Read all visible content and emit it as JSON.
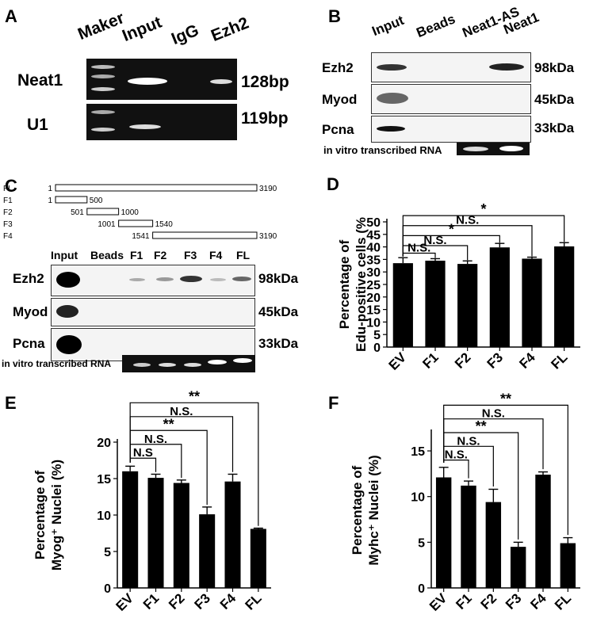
{
  "panels": {
    "A": {
      "letter": "A",
      "lanes": [
        "Maker",
        "Input",
        "IgG",
        "Ezh2"
      ],
      "rows": [
        {
          "name": "Neat1",
          "size": "128bp"
        },
        {
          "name": "U1",
          "size": "119bp"
        }
      ]
    },
    "B": {
      "letter": "B",
      "lanes": [
        "Input",
        "Beads",
        "Neat1-AS",
        "Neat1"
      ],
      "rows": [
        {
          "name": "Ezh2",
          "size": "98kDa"
        },
        {
          "name": "Myod",
          "size": "45kDa"
        },
        {
          "name": "Pcna",
          "size": "33kDa"
        }
      ],
      "rna_label": "in vitro transcribed RNA"
    },
    "C": {
      "letter": "C",
      "fragments": [
        {
          "name": "FL",
          "start": "1",
          "end": "3190",
          "s": 1,
          "e": 3190
        },
        {
          "name": "F1",
          "start": "1",
          "end": "500",
          "s": 1,
          "e": 500
        },
        {
          "name": "F2",
          "start": "501",
          "end": "1000",
          "s": 501,
          "e": 1000
        },
        {
          "name": "F3",
          "start": "1001",
          "end": "1540",
          "s": 1001,
          "e": 1540
        },
        {
          "name": "F4",
          "start": "1541",
          "end": "3190",
          "s": 1541,
          "e": 3190
        }
      ],
      "lanes": [
        "Input",
        "Beads",
        "F1",
        "F2",
        "F3",
        "F4",
        "FL"
      ],
      "rows": [
        {
          "name": "Ezh2",
          "size": "98kDa"
        },
        {
          "name": "Myod",
          "size": "45kDa"
        },
        {
          "name": "Pcna",
          "size": "33kDa"
        }
      ],
      "rna_label": "in vitro transcribed RNA"
    },
    "D": {
      "letter": "D"
    },
    "E": {
      "letter": "E"
    },
    "F": {
      "letter": "F"
    }
  },
  "chart_data": [
    {
      "panel": "D",
      "type": "bar",
      "categories": [
        "EV",
        "F1",
        "F2",
        "F3",
        "F4",
        "FL"
      ],
      "values": [
        33.5,
        34.5,
        33.2,
        39.8,
        35.3,
        40.2
      ],
      "errors": [
        2.2,
        0.8,
        1.2,
        1.6,
        0.6,
        1.5
      ],
      "ylabel": [
        "Percentage of",
        "Edu-positive cells (%"
      ],
      "ylim": [
        0,
        50
      ],
      "yticks": [
        0,
        5,
        10,
        15,
        20,
        25,
        30,
        35,
        40,
        45,
        50
      ],
      "comparisons": [
        {
          "label": "N.S.",
          "to": "F1"
        },
        {
          "label": "N.S.",
          "to": "F2"
        },
        {
          "label": "*",
          "to": "F3"
        },
        {
          "label": "N.S.",
          "to": "F4"
        },
        {
          "label": "*",
          "to": "FL"
        }
      ]
    },
    {
      "panel": "E",
      "type": "bar",
      "categories": [
        "EV",
        "F1",
        "F2",
        "F3",
        "F4",
        "FL"
      ],
      "values": [
        16.0,
        15.1,
        14.4,
        10.1,
        14.6,
        8.1
      ],
      "errors": [
        0.7,
        0.5,
        0.4,
        1.0,
        1.0,
        0.1
      ],
      "ylabel": [
        "Percentage of",
        "Myog⁺ Nuclei (%)"
      ],
      "ylim": [
        0,
        20
      ],
      "yticks": [
        0,
        5,
        10,
        15,
        20
      ],
      "comparisons": [
        {
          "label": "N.S",
          "to": "F1"
        },
        {
          "label": "N.S.",
          "to": "F2"
        },
        {
          "label": "**",
          "to": "F3"
        },
        {
          "label": "N.S.",
          "to": "F4"
        },
        {
          "label": "**",
          "to": "FL"
        }
      ]
    },
    {
      "panel": "F",
      "type": "bar",
      "categories": [
        "EV",
        "F1",
        "F2",
        "F3",
        "F4",
        "FL"
      ],
      "values": [
        12.1,
        11.2,
        9.4,
        4.5,
        12.4,
        4.9
      ],
      "errors": [
        1.1,
        0.5,
        1.4,
        0.5,
        0.3,
        0.6
      ],
      "ylabel": [
        "Percentage of",
        "Myhc⁺ Nuclei (%)"
      ],
      "ylim": [
        0,
        17
      ],
      "yticks": [
        0,
        5,
        10,
        15
      ],
      "comparisons": [
        {
          "label": "N.S.",
          "to": "F1"
        },
        {
          "label": "N.S.",
          "to": "F2"
        },
        {
          "label": "**",
          "to": "F3"
        },
        {
          "label": "N.S.",
          "to": "F4"
        },
        {
          "label": "**",
          "to": "FL"
        }
      ]
    }
  ]
}
